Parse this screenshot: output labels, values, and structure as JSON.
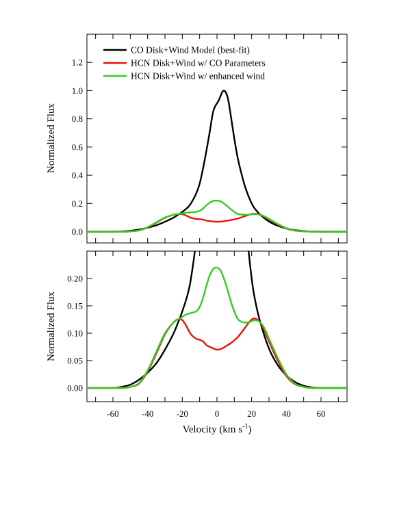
{
  "chart_data": [
    {
      "type": "line",
      "title": "",
      "xlabel": "",
      "ylabel": "Normalized Flux",
      "xlim": [
        -75,
        75
      ],
      "ylim": [
        -0.08,
        1.4
      ],
      "yticks": [
        0.0,
        0.2,
        0.4,
        0.6,
        0.8,
        1.0,
        1.2
      ],
      "ytick_labels": [
        "0.0",
        "0.2",
        "0.4",
        "0.6",
        "0.8",
        "1.0",
        "1.2"
      ],
      "xticks": [
        -70,
        -60,
        -50,
        -40,
        -30,
        -20,
        -10,
        0,
        10,
        20,
        30,
        40,
        50,
        60,
        70
      ],
      "show_x_labels": false,
      "grid": false,
      "legend": "top-left",
      "series": [
        {
          "name": "CO Disk+Wind Model (best-fit)",
          "color": "#000000",
          "x": [
            -75,
            -60,
            -55,
            -50,
            -45,
            -40,
            -35,
            -30,
            -25,
            -22,
            -20,
            -17,
            -15,
            -12,
            -10,
            -8,
            -6,
            -4,
            -3,
            -2,
            -1,
            0,
            1,
            2,
            3,
            4,
            5,
            6,
            7,
            8,
            10,
            12,
            15,
            17,
            20,
            22,
            25,
            30,
            35,
            40,
            45,
            50,
            55,
            60,
            75
          ],
          "y": [
            0.0,
            0.0,
            0.002,
            0.006,
            0.015,
            0.028,
            0.045,
            0.07,
            0.1,
            0.123,
            0.14,
            0.17,
            0.2,
            0.27,
            0.34,
            0.45,
            0.58,
            0.72,
            0.8,
            0.86,
            0.89,
            0.91,
            0.93,
            0.96,
            0.99,
            1.0,
            0.99,
            0.96,
            0.9,
            0.82,
            0.66,
            0.52,
            0.37,
            0.29,
            0.2,
            0.16,
            0.12,
            0.072,
            0.042,
            0.023,
            0.011,
            0.004,
            0.001,
            0.0,
            0.0
          ]
        },
        {
          "name": "HCN Disk+Wind w/ CO Parameters",
          "color": "#e8120c",
          "x": [
            -75,
            -55,
            -50,
            -45,
            -40,
            -35,
            -30,
            -25,
            -22,
            -20,
            -18,
            -15,
            -12,
            -10,
            -8,
            -6,
            -4,
            -2,
            0,
            2,
            4,
            6,
            8,
            10,
            12,
            15,
            18,
            20,
            22,
            24,
            26,
            28,
            30,
            35,
            40,
            45,
            50,
            55,
            60,
            75
          ],
          "y": [
            0.0,
            0.0,
            0.002,
            0.008,
            0.03,
            0.063,
            0.098,
            0.12,
            0.126,
            0.124,
            0.115,
            0.098,
            0.09,
            0.088,
            0.085,
            0.078,
            0.075,
            0.072,
            0.07,
            0.071,
            0.074,
            0.078,
            0.082,
            0.087,
            0.093,
            0.105,
            0.118,
            0.125,
            0.127,
            0.123,
            0.114,
            0.1,
            0.085,
            0.05,
            0.022,
            0.007,
            0.002,
            0.0,
            0.0,
            0.0
          ]
        },
        {
          "name": "HCN Disk+Wind w/ enhanced wind",
          "color": "#33cc22",
          "x": [
            -75,
            -55,
            -50,
            -45,
            -40,
            -35,
            -30,
            -25,
            -22,
            -20,
            -18,
            -15,
            -12,
            -10,
            -8,
            -6,
            -4,
            -2,
            0,
            2,
            4,
            6,
            8,
            10,
            12,
            15,
            18,
            20,
            22,
            24,
            26,
            28,
            30,
            35,
            40,
            45,
            50,
            55,
            60,
            75
          ],
          "y": [
            0.0,
            0.0,
            0.002,
            0.009,
            0.032,
            0.066,
            0.1,
            0.12,
            0.126,
            0.13,
            0.134,
            0.137,
            0.14,
            0.148,
            0.165,
            0.188,
            0.207,
            0.218,
            0.22,
            0.215,
            0.2,
            0.18,
            0.158,
            0.14,
            0.126,
            0.12,
            0.12,
            0.122,
            0.124,
            0.122,
            0.116,
            0.105,
            0.09,
            0.055,
            0.025,
            0.008,
            0.002,
            0.0,
            0.0,
            0.0
          ]
        }
      ]
    },
    {
      "type": "line",
      "title": "",
      "xlabel": "Velocity (km s",
      "xlabel_sup": "-1",
      "xlabel_end": ")",
      "ylabel": "Normalized Flux",
      "xlim": [
        -75,
        75
      ],
      "ylim": [
        -0.025,
        0.25
      ],
      "yticks": [
        0.0,
        0.05,
        0.1,
        0.15,
        0.2
      ],
      "ytick_labels": [
        "0.00",
        "0.05",
        "0.10",
        "0.15",
        "0.20"
      ],
      "xticks": [
        -70,
        -60,
        -50,
        -40,
        -30,
        -20,
        -10,
        0,
        10,
        20,
        30,
        40,
        50,
        60,
        70
      ],
      "xtick_labels": [
        "-60",
        "-40",
        "-20",
        "0",
        "20",
        "40",
        "60"
      ],
      "xtick_label_values": [
        -60,
        -40,
        -20,
        0,
        20,
        40,
        60
      ],
      "grid": false,
      "legend": "none"
    }
  ]
}
